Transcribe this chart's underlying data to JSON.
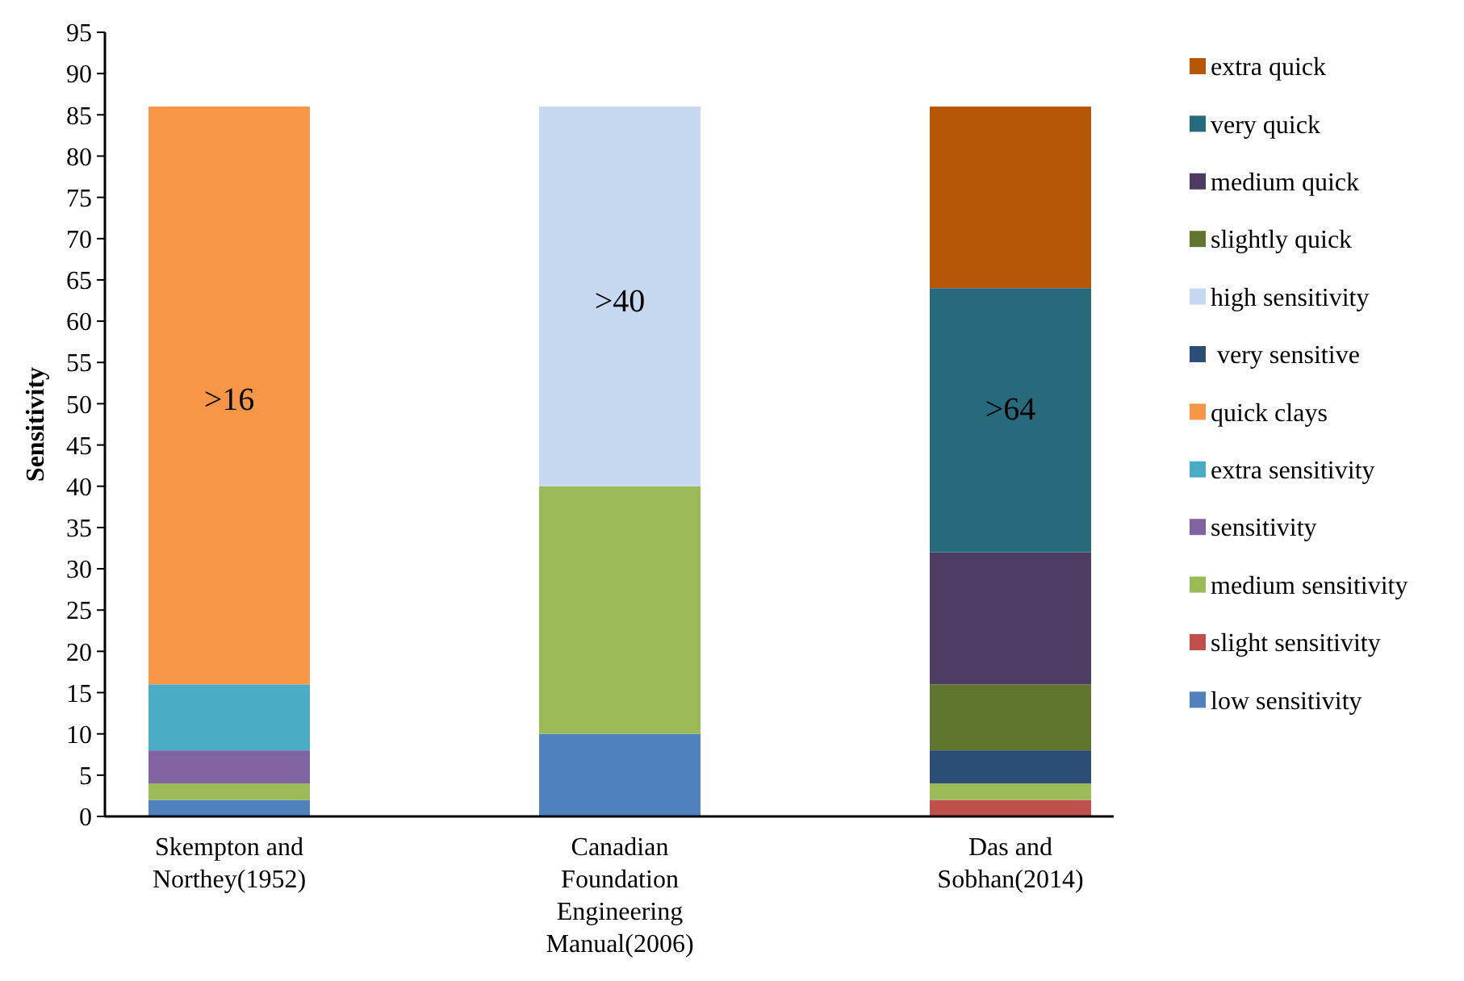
{
  "chart_data": {
    "type": "bar",
    "stacked": true,
    "ylabel": "Sensitivity",
    "categories": [
      "Skempton and Northey(1952)",
      "Canadian Foundation Engineering Manual(2006)",
      "Das and Sobhan(2014)"
    ],
    "series": [
      {
        "name": "low sensitivity",
        "color": "#4f81bd",
        "values": [
          2,
          10,
          null
        ]
      },
      {
        "name": "slight sensitivity",
        "color": "#c0504d",
        "values": [
          null,
          null,
          2
        ]
      },
      {
        "name": "medium sensitivity",
        "color": "#9bbb59",
        "values": [
          2,
          30,
          2
        ]
      },
      {
        "name": "sensitivity",
        "color": "#8064a2",
        "values": [
          4,
          null,
          null
        ]
      },
      {
        "name": "extra sensitivity",
        "color": "#4bacc6",
        "values": [
          8,
          null,
          null
        ]
      },
      {
        "name": "quick clays",
        "color": "#f79646",
        "values": [
          70,
          null,
          null
        ]
      },
      {
        "name": " very sensitive",
        "color": "#2c4d75",
        "values": [
          null,
          null,
          4
        ]
      },
      {
        "name": "high sensitivity",
        "color": "#c6d9f0",
        "values": [
          null,
          46,
          null
        ]
      },
      {
        "name": "slightly quick",
        "color": "#5f7530",
        "values": [
          null,
          null,
          8
        ]
      },
      {
        "name": "medium quick",
        "color": "#4d3b62",
        "values": [
          null,
          null,
          16
        ]
      },
      {
        "name": "very quick",
        "color": "#276a7c",
        "values": [
          null,
          null,
          32
        ]
      },
      {
        "name": "extra quick",
        "color": "#b65708",
        "values": [
          null,
          null,
          22
        ]
      }
    ],
    "annotations": [
      ">16",
      ">40",
      ">64"
    ],
    "ylim": [
      0,
      95
    ],
    "yticks": [
      0,
      5,
      10,
      15,
      20,
      25,
      30,
      35,
      40,
      45,
      50,
      55,
      60,
      65,
      70,
      75,
      80,
      85,
      90,
      95
    ],
    "grid": false,
    "legend": "right"
  }
}
